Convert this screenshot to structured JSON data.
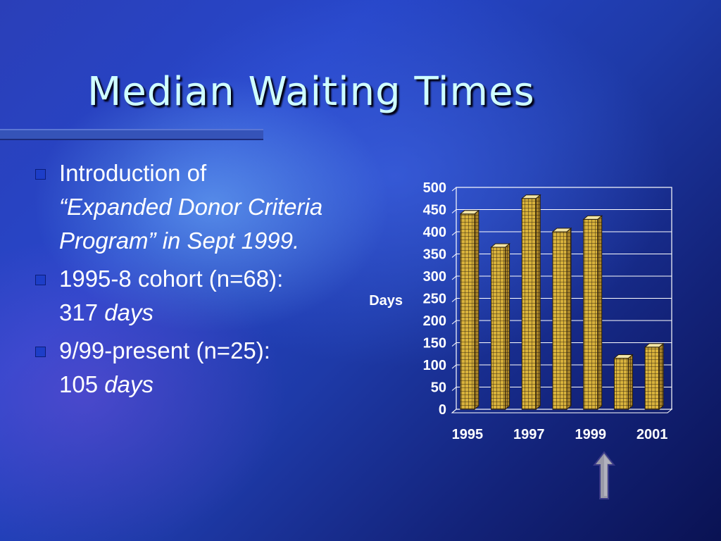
{
  "slide": {
    "title": "Median Waiting Times",
    "bullets": [
      {
        "lines": [
          {
            "text": "Introduction of",
            "italic": false
          },
          {
            "text": "“Expanded Donor Criteria",
            "italic": true
          },
          {
            "text": "Program” in Sept 1999.",
            "italic": true
          }
        ]
      },
      {
        "lines": [
          {
            "text": "1995-8 cohort (n=68):",
            "italic": false
          },
          {
            "text": "317 ",
            "italic": false,
            "tail": "days"
          }
        ]
      },
      {
        "lines": [
          {
            "text": "9/99-present (n=25):",
            "italic": false
          },
          {
            "text": "105 ",
            "italic": false,
            "tail": "days"
          }
        ]
      }
    ]
  },
  "colors": {
    "title": "#cfffff",
    "bar_face": "#d8b23c",
    "bar_grid": "#3a2a10",
    "bullet_marker": "#1d3ec8",
    "arrow": "#9a9aa8"
  },
  "chart_data": {
    "type": "bar",
    "title": "",
    "ylabel": "Days",
    "xlabel": "",
    "ylim": [
      0,
      500
    ],
    "yticks": [
      0,
      50,
      100,
      150,
      200,
      250,
      300,
      350,
      400,
      450,
      500
    ],
    "x_tick_labels": [
      "1995",
      "1997",
      "1999",
      "2001"
    ],
    "values": [
      440,
      365,
      475,
      400,
      428,
      115,
      140
    ],
    "grid": true,
    "style": "3d"
  },
  "annotation": {
    "icon": "up-arrow-icon"
  }
}
